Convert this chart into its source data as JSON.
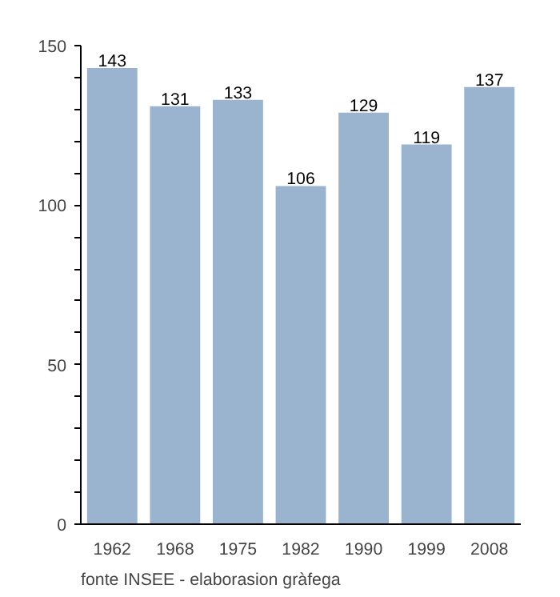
{
  "chart_data": {
    "type": "bar",
    "categories": [
      "1962",
      "1968",
      "1975",
      "1982",
      "1990",
      "1999",
      "2008"
    ],
    "values": [
      143,
      131,
      133,
      106,
      129,
      119,
      137
    ],
    "color": "#9ab3cf",
    "data_labels": true,
    "ylim": [
      0,
      150
    ],
    "yticks": [
      0,
      {
        "value": 10,
        "label": null
      },
      {
        "value": 20,
        "label": null
      },
      {
        "value": 30,
        "label": null
      },
      {
        "value": 40,
        "label": null
      },
      50,
      {
        "value": 60,
        "label": null
      },
      {
        "value": 70,
        "label": null
      },
      {
        "value": 80,
        "label": null
      },
      {
        "value": 90,
        "label": null
      },
      100,
      {
        "value": 110,
        "label": null
      },
      {
        "value": 120,
        "label": null
      },
      {
        "value": 130,
        "label": null
      },
      {
        "value": 140,
        "label": null
      },
      150
    ],
    "grid": false,
    "annotations": [
      "fonte INSEE - elaborasion gràfega"
    ]
  }
}
